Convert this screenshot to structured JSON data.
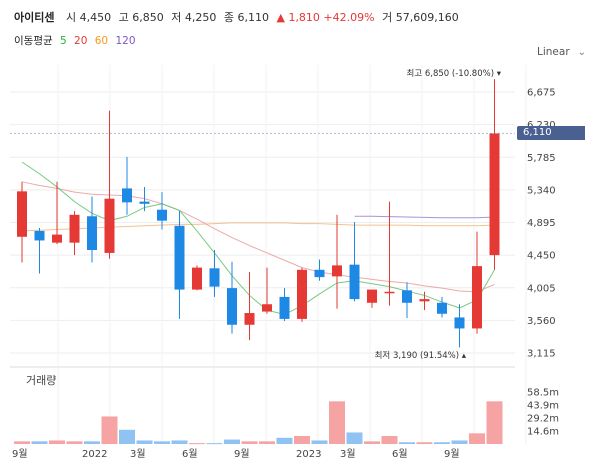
{
  "header": {
    "name": "아이티센",
    "open_label": "시",
    "open": "4,450",
    "high_label": "고",
    "high": "6,850",
    "low_label": "저",
    "low": "4,250",
    "close_label": "종",
    "close": "6,110",
    "change": "▲ 1,810 +42.09%",
    "volume_label": "거",
    "volume": "57,609,160"
  },
  "ma_legend": {
    "title": "이동평균",
    "items": [
      {
        "label": "5",
        "color": "#2bb03e"
      },
      {
        "label": "20",
        "color": "#e53935"
      },
      {
        "label": "60",
        "color": "#f39c12"
      },
      {
        "label": "120",
        "color": "#7e57c2"
      }
    ]
  },
  "scale_select": "Linear",
  "current_price": "6,110",
  "volume_panel_label": "거래량",
  "colors": {
    "up": "#e53935",
    "down": "#1e88e5",
    "vol_up": "#f5a3a3",
    "vol_down": "#90c2f2",
    "grid": "#eeeeee"
  },
  "chart_data": {
    "type": "candlestick",
    "y_ticks": [
      "6,675",
      "6,230",
      "5,785",
      "5,340",
      "4,895",
      "4,450",
      "4,005",
      "3,560",
      "3,115"
    ],
    "ylim": [
      3115,
      6675
    ],
    "x_ticks": [
      "9월",
      "2022",
      "3월",
      "6월",
      "9월",
      "2023",
      "3월",
      "6월",
      "9월"
    ],
    "annotations": {
      "high": {
        "label": "최고",
        "value": "6,850",
        "pct": "(-10.80%)"
      },
      "low": {
        "label": "최저",
        "value": "3,190",
        "pct": "(91.54%)"
      }
    },
    "candles": [
      {
        "o": 4700,
        "h": 5450,
        "l": 4350,
        "c": 5320
      },
      {
        "o": 4780,
        "h": 4820,
        "l": 4200,
        "c": 4650
      },
      {
        "o": 4620,
        "h": 5450,
        "l": 4600,
        "c": 4730
      },
      {
        "o": 4620,
        "h": 5050,
        "l": 4450,
        "c": 5000
      },
      {
        "o": 4980,
        "h": 5250,
        "l": 4350,
        "c": 4520
      },
      {
        "o": 4480,
        "h": 6420,
        "l": 4400,
        "c": 5220
      },
      {
        "o": 5360,
        "h": 5790,
        "l": 5000,
        "c": 5170
      },
      {
        "o": 5180,
        "h": 5380,
        "l": 5050,
        "c": 5150
      },
      {
        "o": 5070,
        "h": 5310,
        "l": 4800,
        "c": 4920
      },
      {
        "o": 4850,
        "h": 5050,
        "l": 3580,
        "c": 3980
      },
      {
        "o": 3980,
        "h": 4310,
        "l": 3970,
        "c": 4280
      },
      {
        "o": 4270,
        "h": 4520,
        "l": 3880,
        "c": 4020
      },
      {
        "o": 4000,
        "h": 4360,
        "l": 3380,
        "c": 3500
      },
      {
        "o": 3500,
        "h": 4220,
        "l": 3290,
        "c": 3660
      },
      {
        "o": 3680,
        "h": 4280,
        "l": 3650,
        "c": 3780
      },
      {
        "o": 3880,
        "h": 4000,
        "l": 3550,
        "c": 3580
      },
      {
        "o": 3580,
        "h": 4280,
        "l": 3540,
        "c": 4250
      },
      {
        "o": 4250,
        "h": 4390,
        "l": 4100,
        "c": 4150
      },
      {
        "o": 4160,
        "h": 5000,
        "l": 3720,
        "c": 4310
      },
      {
        "o": 4320,
        "h": 4900,
        "l": 3820,
        "c": 3850
      },
      {
        "o": 3800,
        "h": 3980,
        "l": 3730,
        "c": 3980
      },
      {
        "o": 3930,
        "h": 5180,
        "l": 3760,
        "c": 3950
      },
      {
        "o": 3970,
        "h": 4080,
        "l": 3590,
        "c": 3800
      },
      {
        "o": 3820,
        "h": 3950,
        "l": 3700,
        "c": 3850
      },
      {
        "o": 3800,
        "h": 3880,
        "l": 3600,
        "c": 3650
      },
      {
        "o": 3600,
        "h": 3780,
        "l": 3190,
        "c": 3450
      },
      {
        "o": 3450,
        "h": 4770,
        "l": 3380,
        "c": 4300
      },
      {
        "o": 4450,
        "h": 6850,
        "l": 4250,
        "c": 6110
      }
    ],
    "ma5": [
      5720,
      5560,
      5380,
      5180,
      5020,
      4920,
      4980,
      5100,
      5150,
      5060,
      4780,
      4480,
      4170,
      3900,
      3700,
      3640,
      3760,
      3920,
      4070,
      4100,
      4060,
      4020,
      3960,
      3900,
      3810,
      3730,
      3840,
      4250
    ],
    "ma20": [
      5450,
      5400,
      5360,
      5310,
      5280,
      5270,
      5260,
      5220,
      5150,
      5060,
      4940,
      4810,
      4690,
      4580,
      4480,
      4380,
      4280,
      4220,
      4180,
      4150,
      4120,
      4090,
      4070,
      4030,
      4000,
      3960,
      3950,
      4050
    ],
    "ma60": [
      4780,
      4790,
      4800,
      4810,
      4820,
      4830,
      4840,
      4850,
      4860,
      4870,
      4870,
      4880,
      4890,
      4890,
      4890,
      4890,
      4880,
      4880,
      4870,
      4860,
      4860,
      4860,
      4860,
      4850,
      4850,
      4850,
      4850,
      4860
    ],
    "ma120": [
      null,
      null,
      null,
      null,
      null,
      null,
      null,
      null,
      null,
      null,
      null,
      null,
      null,
      null,
      null,
      null,
      null,
      null,
      null,
      4980,
      4980,
      4975,
      4970,
      4965,
      4960,
      4960,
      4960,
      4970
    ],
    "volume_ticks": [
      "58.5m",
      "43.9m",
      "29.2m",
      "14.6m"
    ],
    "volume_max": 58.5,
    "volumes": [
      3,
      3,
      4,
      3,
      3,
      31,
      16,
      4,
      3,
      4,
      1,
      1,
      5,
      3,
      3,
      7,
      9,
      4,
      48,
      13,
      3,
      9,
      2,
      2,
      2,
      4,
      12,
      48
    ]
  }
}
